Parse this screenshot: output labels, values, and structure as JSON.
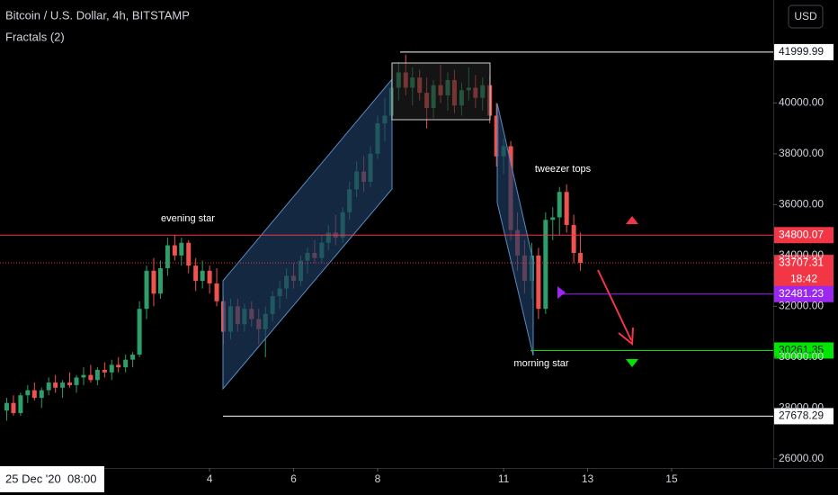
{
  "chart_data": {
    "type": "candlestick",
    "title": "Bitcoin / U.S. Dollar, 4h, BITSTAMP",
    "indicator": "Fractals (2)",
    "currency": "USD",
    "crosshair_label": "25 Dec '20  08:00",
    "countdown": "18:42",
    "annotations": [
      "evening star",
      "tweezer tops",
      "morning star"
    ],
    "up_color": "#2e9e6a",
    "down_color": "#ef5350",
    "x": [
      -0.83,
      -0.67,
      -0.5,
      -0.33,
      -0.17,
      0,
      0.17,
      0.33,
      0.5,
      0.67,
      0.83,
      1,
      1.17,
      1.33,
      1.5,
      1.67,
      1.83,
      2,
      2.17,
      2.33,
      2.5,
      2.67,
      2.83,
      3,
      3.17,
      3.33,
      3.5,
      3.67,
      3.83,
      4,
      4.17,
      4.33,
      4.5,
      4.67,
      4.83,
      5,
      5.17,
      5.33,
      5.5,
      5.67,
      5.83,
      6,
      6.17,
      6.33,
      6.5,
      6.67,
      6.83,
      7,
      7.17,
      7.33,
      7.5,
      7.67,
      7.83,
      8,
      8.17,
      8.33,
      8.5,
      8.67,
      8.83,
      9,
      9.17,
      9.33,
      9.5,
      9.67,
      9.83,
      10,
      10.17,
      10.33,
      10.5,
      10.67,
      10.83,
      11,
      11.17,
      11.33,
      11.5,
      11.67,
      11.83,
      12,
      12.17,
      12.33,
      12.5,
      12.67,
      12.83
    ],
    "open": [
      27900,
      28200,
      27800,
      28500,
      28700,
      28400,
      28700,
      29000,
      28800,
      29000,
      28900,
      29200,
      29300,
      29100,
      29500,
      29400,
      29700,
      29600,
      29900,
      30100,
      31900,
      33400,
      32500,
      33500,
      34400,
      34000,
      34500,
      33600,
      33000,
      33400,
      32900,
      32200,
      31000,
      32000,
      31300,
      31900,
      31500,
      31100,
      31700,
      32400,
      32700,
      33200,
      33000,
      33800,
      34100,
      33900,
      34500,
      34900,
      34700,
      35700,
      36600,
      37300,
      36900,
      38000,
      39200,
      39500,
      40600,
      41200,
      40600,
      41000,
      40400,
      39800,
      40700,
      40300,
      40900,
      39900,
      40500,
      40600,
      40200,
      40700,
      39500,
      37900,
      38300,
      35000,
      34000,
      33000,
      34000,
      31900,
      35400,
      35500,
      36500,
      35200,
      34100
    ],
    "high": [
      28400,
      28500,
      28600,
      28900,
      29000,
      28800,
      29200,
      29300,
      29100,
      29400,
      29300,
      29600,
      29700,
      29600,
      29800,
      29900,
      30000,
      30100,
      30200,
      32200,
      33600,
      33900,
      33800,
      34700,
      34800,
      34700,
      34600,
      33900,
      33800,
      33600,
      33500,
      32400,
      32300,
      32300,
      32100,
      32200,
      31900,
      32000,
      32600,
      33000,
      33500,
      33700,
      34000,
      34300,
      34600,
      34800,
      35200,
      35600,
      35900,
      36900,
      37700,
      37900,
      38300,
      39500,
      40200,
      40900,
      41600,
      41900,
      41400,
      41300,
      41000,
      40900,
      41500,
      41200,
      41300,
      40800,
      41400,
      41100,
      41000,
      41100,
      40000,
      38600,
      38500,
      35700,
      34600,
      34500,
      34300,
      35700,
      35900,
      36700,
      36800,
      35600,
      34900
    ],
    "low": [
      27500,
      27700,
      27700,
      28200,
      28300,
      28000,
      28500,
      28600,
      28400,
      28800,
      28600,
      28900,
      29000,
      28900,
      29200,
      29100,
      29400,
      29400,
      29600,
      30000,
      31500,
      32000,
      32300,
      33200,
      33800,
      33600,
      33300,
      32600,
      32700,
      32500,
      32000,
      30500,
      30700,
      31000,
      31000,
      31200,
      30500,
      30000,
      31400,
      31900,
      32300,
      32700,
      32800,
      33300,
      33700,
      33700,
      34200,
      34400,
      34500,
      35400,
      36300,
      36500,
      36700,
      37800,
      38500,
      39300,
      40100,
      40300,
      39900,
      40100,
      39000,
      39400,
      40000,
      39700,
      39600,
      39500,
      40100,
      39800,
      39700,
      39200,
      37500,
      37200,
      34600,
      33400,
      32500,
      32300,
      31500,
      31700,
      34600,
      34800,
      34900,
      33700,
      33400
    ],
    "close": [
      28200,
      27800,
      28500,
      28700,
      28400,
      28700,
      29000,
      28800,
      29000,
      28900,
      29200,
      29300,
      29100,
      29500,
      29400,
      29700,
      29600,
      29900,
      30100,
      31900,
      33400,
      32500,
      33500,
      34400,
      34000,
      34500,
      33600,
      33000,
      33400,
      32900,
      32200,
      31000,
      32000,
      31300,
      31900,
      31500,
      31100,
      31700,
      32400,
      32700,
      33200,
      33000,
      33800,
      34100,
      33900,
      34500,
      34900,
      34700,
      35700,
      36600,
      37300,
      36900,
      38000,
      39200,
      39500,
      40600,
      41200,
      40600,
      41000,
      40400,
      39800,
      40700,
      40300,
      40900,
      39900,
      40500,
      40600,
      40200,
      40700,
      39500,
      37900,
      38300,
      35000,
      34000,
      33000,
      34000,
      31900,
      35400,
      35500,
      36500,
      35200,
      34100,
      33707.31
    ],
    "levels": [
      {
        "value": 41999.99,
        "color": "#ffffff"
      },
      {
        "value": 34800.07,
        "color": "#f23645"
      },
      {
        "value": 33707.31,
        "color": "#f23645",
        "dash": true
      },
      {
        "value": 32481.23,
        "color": "#9c27f0"
      },
      {
        "value": 30261.35,
        "color": "#00e600"
      },
      {
        "value": 27678.29,
        "color": "#ffffff"
      }
    ],
    "xlim": [
      -0.99,
      17.42
    ],
    "xticks": [
      4,
      6,
      8,
      11,
      13,
      15
    ],
    "ylim": [
      25640,
      44050
    ],
    "yticks": [
      {
        "value": 26000,
        "label": "26000.00"
      },
      {
        "value": 28000,
        "label": "28000.00"
      },
      {
        "value": 30000,
        "label": "30000.00"
      },
      {
        "value": 32000,
        "label": "32000.00"
      },
      {
        "value": 34000,
        "label": "34000.00"
      },
      {
        "value": 36000,
        "label": "36000.00"
      },
      {
        "value": 38000,
        "label": "38000.00"
      },
      {
        "value": 40000,
        "label": "40000.00"
      }
    ],
    "grid": false
  }
}
